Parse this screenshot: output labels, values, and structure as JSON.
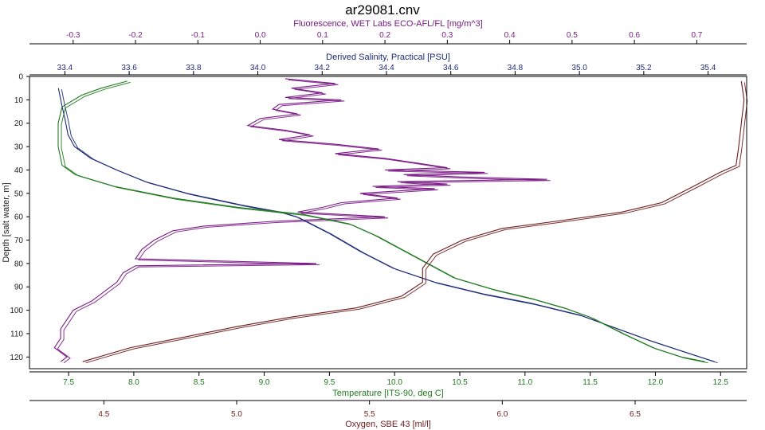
{
  "colors": {
    "fluorescence": "#7a1a86",
    "salinity": "#1c2a7a",
    "temperature": "#1f7a1f",
    "oxygen": "#6e1c1c",
    "depth": "#222222"
  },
  "chart_data": {
    "type": "line",
    "title": "ar29081.cnv",
    "grid": false,
    "y_axis": {
      "label": "Depth [salt water, m]",
      "range": [
        0,
        125
      ],
      "inverted": true,
      "ticks": [
        0,
        10,
        20,
        30,
        40,
        50,
        60,
        70,
        80,
        90,
        100,
        110,
        120
      ]
    },
    "x_axes": [
      {
        "id": "fluorescence",
        "label": "Fluorescence, WET Labs ECO-AFL/FL [mg/m^3]",
        "position": "top",
        "range": [
          -0.37,
          0.78
        ],
        "ticks": [
          "-0.3",
          "-0.2",
          "-0.1",
          "0.0",
          "0.1",
          "0.2",
          "0.3",
          "0.4",
          "0.5",
          "0.6",
          "0.7"
        ]
      },
      {
        "id": "salinity",
        "label": "Derived Salinity, Practical [PSU]",
        "position": "top",
        "range": [
          33.29,
          35.52
        ],
        "ticks": [
          "33.4",
          "33.6",
          "33.8",
          "34.0",
          "34.2",
          "34.4",
          "34.6",
          "34.8",
          "35.0",
          "35.2",
          "35.4"
        ]
      },
      {
        "id": "temperature",
        "label": "Temperature [ITS-90, deg C]",
        "position": "bottom",
        "range": [
          7.2,
          12.7
        ],
        "ticks": [
          "7.5",
          "8.0",
          "8.5",
          "9.0",
          "9.5",
          "10.0",
          "10.5",
          "11.0",
          "11.5",
          "12.0",
          "12.5"
        ]
      },
      {
        "id": "oxygen",
        "label": "Oxygen, SBE 43 [ml/l]",
        "position": "bottom",
        "range": [
          4.22,
          6.92
        ],
        "ticks": [
          "4.5",
          "5.0",
          "5.5",
          "6.0",
          "6.5"
        ]
      }
    ],
    "series": [
      {
        "axis": "fluorescence",
        "points": [
          [
            0.04,
            1
          ],
          [
            0.12,
            3
          ],
          [
            0.05,
            5
          ],
          [
            0.1,
            7
          ],
          [
            0.04,
            9
          ],
          [
            0.13,
            10
          ],
          [
            0.03,
            12
          ],
          [
            0.02,
            14
          ],
          [
            0.06,
            16
          ],
          [
            0.0,
            18
          ],
          [
            -0.02,
            21
          ],
          [
            0.04,
            23
          ],
          [
            0.08,
            25
          ],
          [
            0.03,
            27
          ],
          [
            0.12,
            29
          ],
          [
            0.19,
            31
          ],
          [
            0.12,
            33
          ],
          [
            0.2,
            35
          ],
          [
            0.25,
            37
          ],
          [
            0.3,
            39
          ],
          [
            0.2,
            40
          ],
          [
            0.36,
            41
          ],
          [
            0.23,
            42
          ],
          [
            0.32,
            43
          ],
          [
            0.46,
            44
          ],
          [
            0.22,
            45
          ],
          [
            0.3,
            46
          ],
          [
            0.18,
            47
          ],
          [
            0.28,
            48
          ],
          [
            0.16,
            50
          ],
          [
            0.22,
            52
          ],
          [
            0.13,
            54
          ],
          [
            0.1,
            56
          ],
          [
            0.06,
            58
          ],
          [
            0.2,
            60
          ],
          [
            0.02,
            62
          ],
          [
            -0.09,
            64
          ],
          [
            -0.14,
            66
          ],
          [
            -0.17,
            70
          ],
          [
            -0.19,
            74
          ],
          [
            -0.2,
            78
          ],
          [
            0.09,
            80
          ],
          [
            -0.2,
            81
          ],
          [
            -0.22,
            84
          ],
          [
            -0.23,
            88
          ],
          [
            -0.25,
            92
          ],
          [
            -0.27,
            96
          ],
          [
            -0.3,
            100
          ],
          [
            -0.31,
            104
          ],
          [
            -0.32,
            108
          ],
          [
            -0.32,
            112
          ],
          [
            -0.33,
            116
          ],
          [
            -0.31,
            120
          ],
          [
            -0.32,
            122
          ]
        ]
      },
      {
        "axis": "salinity",
        "points": [
          [
            33.38,
            5
          ],
          [
            33.39,
            12
          ],
          [
            33.4,
            18
          ],
          [
            33.41,
            25
          ],
          [
            33.43,
            30
          ],
          [
            33.48,
            35
          ],
          [
            33.56,
            40
          ],
          [
            33.65,
            45
          ],
          [
            33.78,
            50
          ],
          [
            33.95,
            55
          ],
          [
            34.07,
            58
          ],
          [
            34.12,
            60
          ],
          [
            34.22,
            67
          ],
          [
            34.32,
            75
          ],
          [
            34.42,
            82
          ],
          [
            34.55,
            88
          ],
          [
            34.7,
            93
          ],
          [
            34.85,
            97
          ],
          [
            35.0,
            102
          ],
          [
            35.1,
            107
          ],
          [
            35.22,
            113
          ],
          [
            35.33,
            118
          ],
          [
            35.42,
            122
          ]
        ]
      },
      {
        "axis": "temperature",
        "points": [
          [
            7.95,
            2
          ],
          [
            7.75,
            5
          ],
          [
            7.6,
            8
          ],
          [
            7.45,
            13
          ],
          [
            7.42,
            20
          ],
          [
            7.42,
            30
          ],
          [
            7.45,
            38
          ],
          [
            7.55,
            42
          ],
          [
            7.85,
            47
          ],
          [
            8.3,
            52
          ],
          [
            8.8,
            56
          ],
          [
            9.3,
            59
          ],
          [
            9.65,
            63
          ],
          [
            9.85,
            68
          ],
          [
            10.05,
            74
          ],
          [
            10.25,
            80
          ],
          [
            10.45,
            86
          ],
          [
            10.75,
            91
          ],
          [
            11.05,
            95
          ],
          [
            11.3,
            99
          ],
          [
            11.5,
            103
          ],
          [
            11.75,
            110
          ],
          [
            11.98,
            116
          ],
          [
            12.2,
            120
          ],
          [
            12.38,
            122
          ]
        ]
      },
      {
        "axis": "oxygen",
        "points": [
          [
            6.9,
            2
          ],
          [
            6.91,
            10
          ],
          [
            6.9,
            20
          ],
          [
            6.89,
            30
          ],
          [
            6.88,
            38
          ],
          [
            6.82,
            41
          ],
          [
            6.72,
            47
          ],
          [
            6.6,
            54
          ],
          [
            6.45,
            58
          ],
          [
            6.2,
            62
          ],
          [
            6.0,
            65
          ],
          [
            5.85,
            70
          ],
          [
            5.74,
            76
          ],
          [
            5.7,
            82
          ],
          [
            5.7,
            88
          ],
          [
            5.62,
            94
          ],
          [
            5.45,
            99
          ],
          [
            5.2,
            103
          ],
          [
            5.0,
            107
          ],
          [
            4.78,
            112
          ],
          [
            4.6,
            116
          ],
          [
            4.48,
            120
          ],
          [
            4.42,
            122
          ]
        ]
      }
    ]
  }
}
